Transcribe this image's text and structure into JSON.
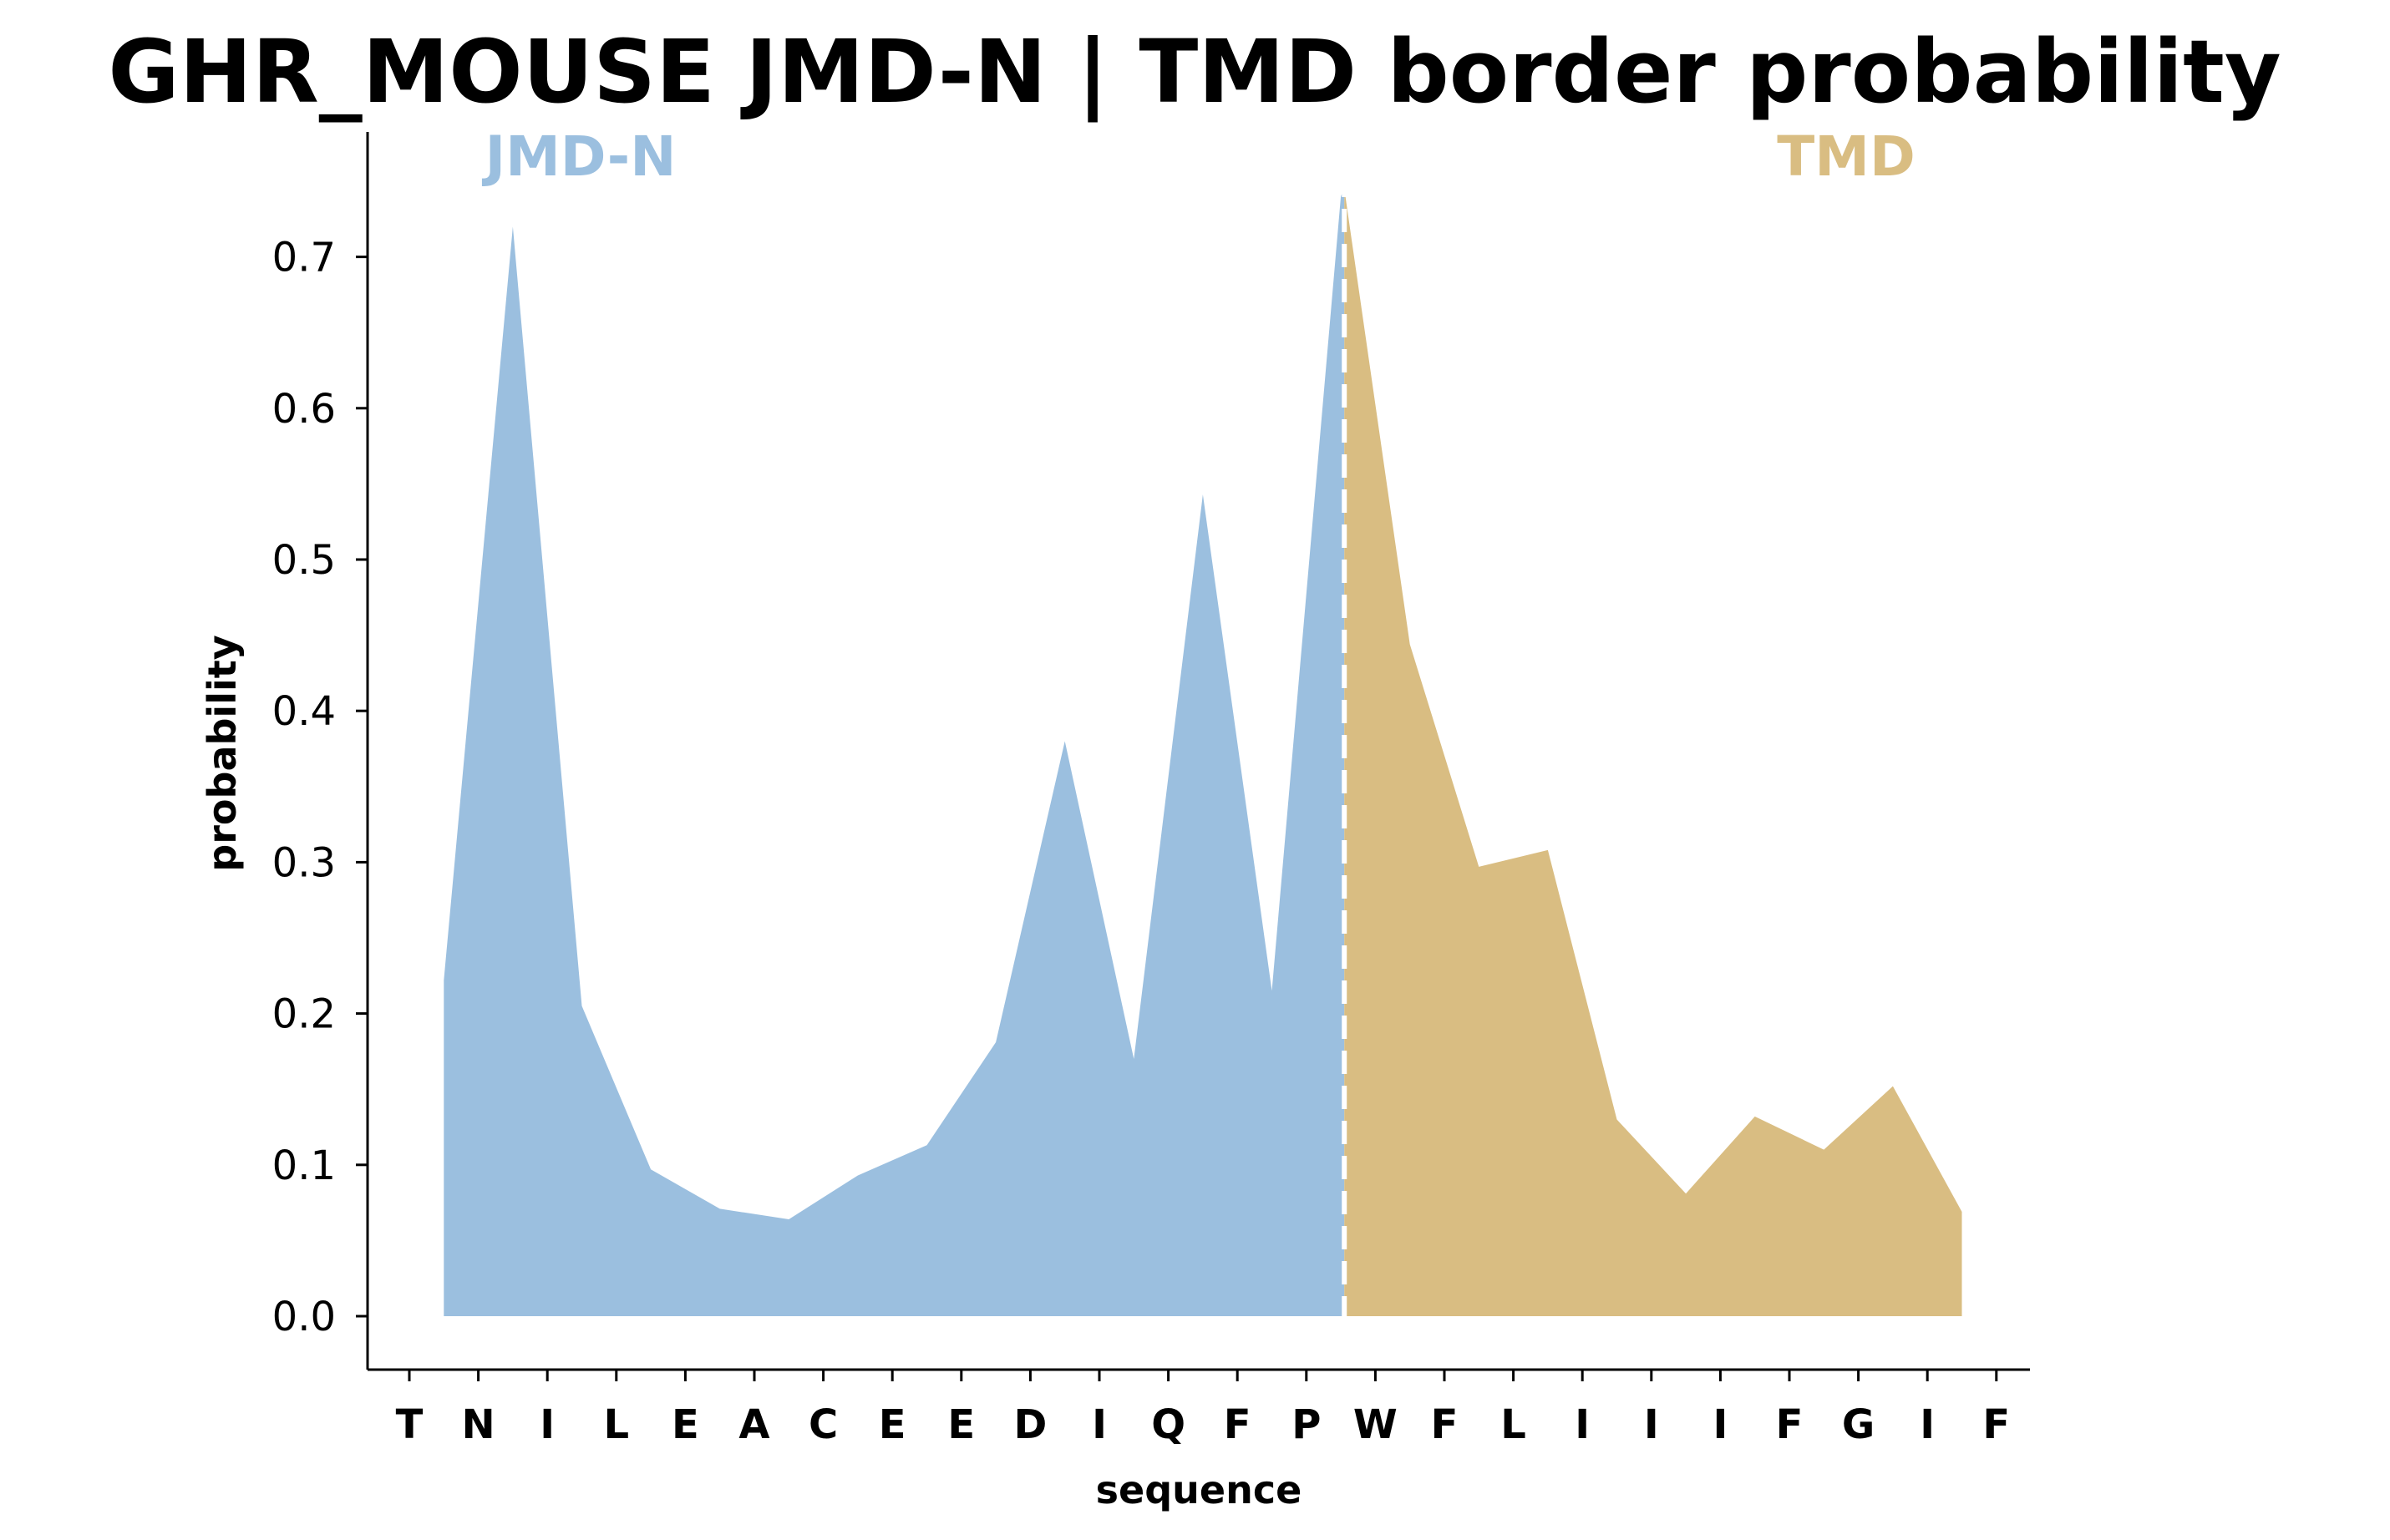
{
  "chart_data": {
    "type": "area",
    "title": "GHR_MOUSE JMD-N | TMD border probability",
    "xlabel": "sequence",
    "ylabel": "probability",
    "categories": [
      "T",
      "N",
      "I",
      "L",
      "E",
      "A",
      "C",
      "E",
      "E",
      "D",
      "I",
      "Q",
      "F",
      "P",
      "W",
      "F",
      "L",
      "I",
      "I",
      "I",
      "F",
      "G",
      "I",
      "F"
    ],
    "yticks": [
      "0.0",
      "0.1",
      "0.2",
      "0.3",
      "0.4",
      "0.5",
      "0.6",
      "0.7"
    ],
    "ylim": [
      -0.036,
      0.785
    ],
    "series": [
      {
        "name": "JMD-N",
        "color": "#9bbfdf",
        "x": [
          0.5,
          1.5,
          2.5,
          3.5,
          4.5,
          5.5,
          6.5,
          7.5,
          8.5,
          9.5,
          10.5,
          11.5,
          12.5,
          13.5,
          13.55
        ],
        "values": [
          0.222,
          0.72,
          0.205,
          0.097,
          0.071,
          0.064,
          0.093,
          0.113,
          0.181,
          0.38,
          0.17,
          0.543,
          0.215,
          0.74,
          0.745
        ]
      },
      {
        "name": "TMD",
        "color": "#d9bd82",
        "x": [
          13.55,
          14.5,
          15.5,
          16.5,
          17.5,
          18.5,
          19.5,
          20.5,
          21.5,
          22.5
        ],
        "values": [
          0.745,
          0.444,
          0.297,
          0.308,
          0.13,
          0.081,
          0.132,
          0.11,
          0.152,
          0.069
        ]
      }
    ],
    "border_x": 13.55,
    "border_style": "dashed white line",
    "grid": false,
    "legend": "none"
  }
}
